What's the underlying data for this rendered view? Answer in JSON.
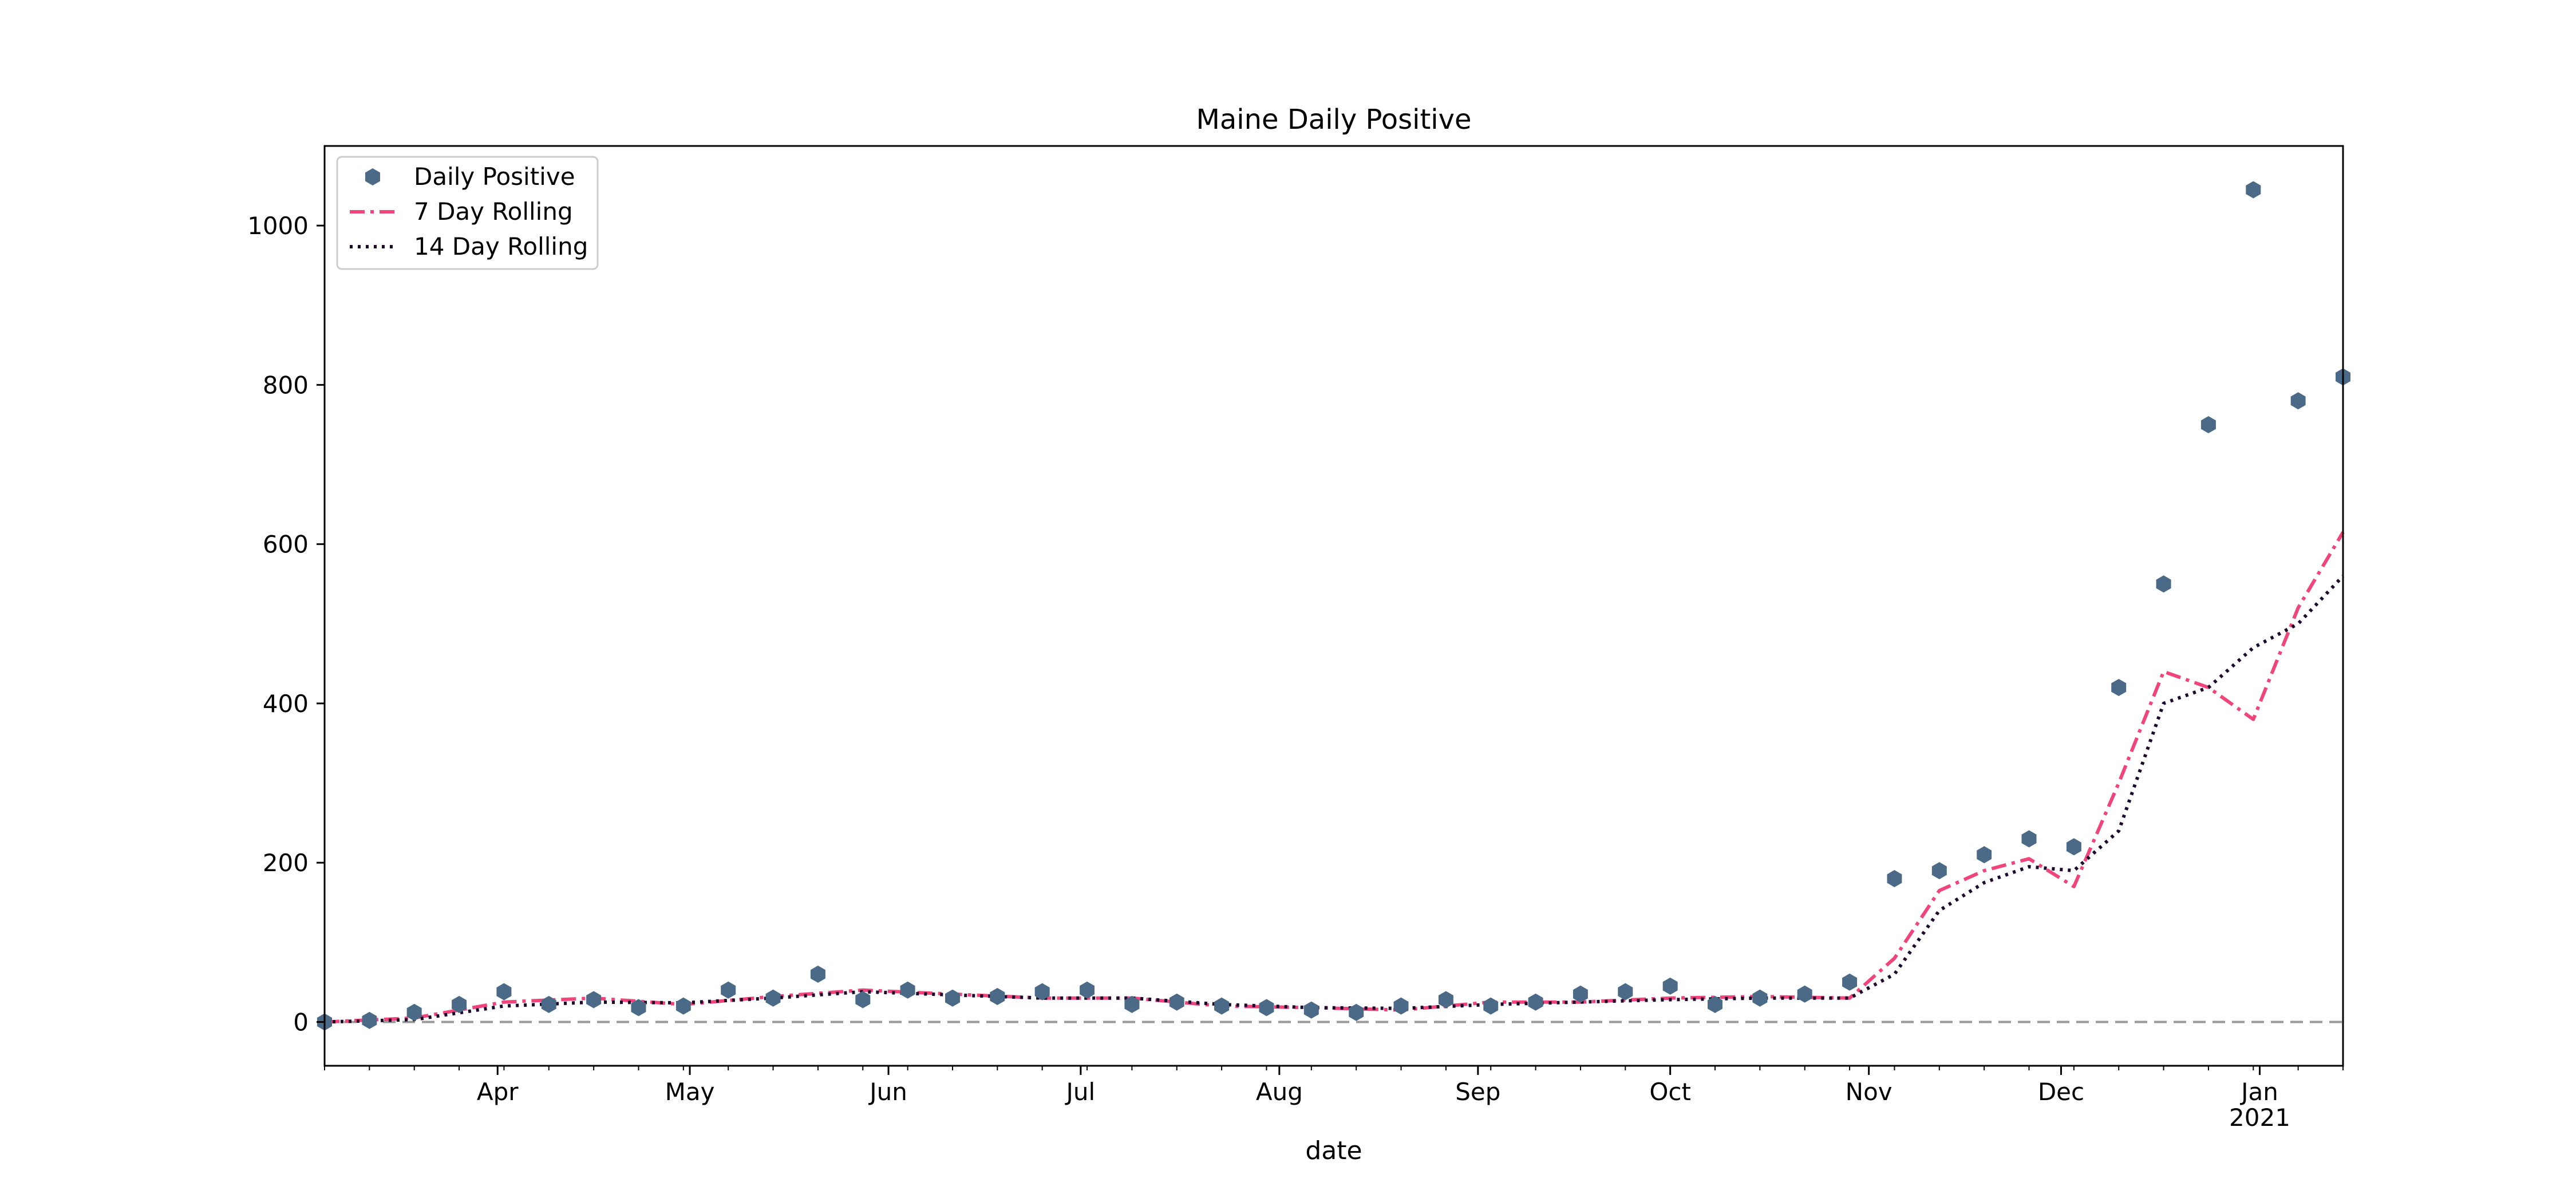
{
  "chart_data": {
    "type": "scatter",
    "title": "Maine Daily Positive",
    "xlabel": "date",
    "ylabel": "",
    "x_range": [
      "2020-03-05",
      "2021-01-14"
    ],
    "ylim": [
      -55,
      1100
    ],
    "y_ticks": [
      0,
      200,
      400,
      600,
      800,
      1000
    ],
    "x_ticks": [
      {
        "date": "2020-04-01",
        "label": "Apr",
        "sublabel": ""
      },
      {
        "date": "2020-05-01",
        "label": "May",
        "sublabel": ""
      },
      {
        "date": "2020-06-01",
        "label": "Jun",
        "sublabel": ""
      },
      {
        "date": "2020-07-01",
        "label": "Jul",
        "sublabel": ""
      },
      {
        "date": "2020-08-01",
        "label": "Aug",
        "sublabel": ""
      },
      {
        "date": "2020-09-01",
        "label": "Sep",
        "sublabel": ""
      },
      {
        "date": "2020-10-01",
        "label": "Oct",
        "sublabel": ""
      },
      {
        "date": "2020-11-01",
        "label": "Nov",
        "sublabel": ""
      },
      {
        "date": "2020-12-01",
        "label": "Dec",
        "sublabel": ""
      },
      {
        "date": "2021-01-01",
        "label": "Jan",
        "sublabel": "2021"
      }
    ],
    "legend_position": "upper-left",
    "grid": false,
    "reference_line": {
      "y": 0,
      "style": "dashed",
      "color": "#999999"
    },
    "colors": {
      "daily": "#4a6a88",
      "rolling7": "#f0457a",
      "rolling14": "#1c0a2e"
    },
    "series": [
      {
        "name": "Daily Positive",
        "style": "hexagon-markers",
        "x": [
          "2020-03-05",
          "2020-03-12",
          "2020-03-19",
          "2020-03-26",
          "2020-04-02",
          "2020-04-09",
          "2020-04-16",
          "2020-04-23",
          "2020-04-30",
          "2020-05-07",
          "2020-05-14",
          "2020-05-21",
          "2020-05-28",
          "2020-06-04",
          "2020-06-11",
          "2020-06-18",
          "2020-06-25",
          "2020-07-02",
          "2020-07-09",
          "2020-07-16",
          "2020-07-23",
          "2020-07-30",
          "2020-08-06",
          "2020-08-13",
          "2020-08-20",
          "2020-08-27",
          "2020-09-03",
          "2020-09-10",
          "2020-09-17",
          "2020-09-24",
          "2020-10-01",
          "2020-10-08",
          "2020-10-15",
          "2020-10-22",
          "2020-10-29",
          "2020-11-05",
          "2020-11-12",
          "2020-11-19",
          "2020-11-26",
          "2020-12-03",
          "2020-12-10",
          "2020-12-17",
          "2020-12-24",
          "2020-12-31",
          "2021-01-07",
          "2021-01-14"
        ],
        "y": [
          0,
          2,
          12,
          22,
          38,
          22,
          28,
          18,
          20,
          40,
          30,
          60,
          28,
          40,
          30,
          32,
          38,
          40,
          22,
          25,
          20,
          18,
          15,
          12,
          20,
          28,
          20,
          25,
          35,
          38,
          45,
          22,
          30,
          35,
          50,
          180,
          190,
          210,
          230,
          220,
          420,
          550,
          750,
          1045,
          780,
          810
        ]
      },
      {
        "name": "7 Day Rolling",
        "style": "dash-dot-line",
        "x": [
          "2020-03-05",
          "2020-03-19",
          "2020-04-02",
          "2020-04-16",
          "2020-04-30",
          "2020-05-14",
          "2020-05-28",
          "2020-06-11",
          "2020-06-25",
          "2020-07-09",
          "2020-07-23",
          "2020-08-06",
          "2020-08-20",
          "2020-09-03",
          "2020-09-17",
          "2020-10-01",
          "2020-10-15",
          "2020-10-29",
          "2020-11-05",
          "2020-11-12",
          "2020-11-19",
          "2020-11-26",
          "2020-12-03",
          "2020-12-10",
          "2020-12-17",
          "2020-12-24",
          "2020-12-31",
          "2021-01-07",
          "2021-01-14"
        ],
        "y": [
          0,
          5,
          25,
          30,
          22,
          32,
          40,
          35,
          30,
          30,
          20,
          18,
          15,
          25,
          25,
          30,
          32,
          30,
          80,
          165,
          190,
          205,
          170,
          300,
          440,
          420,
          380,
          520,
          615
        ]
      },
      {
        "name": "14 Day Rolling",
        "style": "dotted-line",
        "x": [
          "2020-03-05",
          "2020-03-19",
          "2020-04-02",
          "2020-04-16",
          "2020-04-30",
          "2020-05-14",
          "2020-05-28",
          "2020-06-11",
          "2020-06-25",
          "2020-07-09",
          "2020-07-23",
          "2020-08-06",
          "2020-08-20",
          "2020-09-03",
          "2020-09-17",
          "2020-10-01",
          "2020-10-15",
          "2020-10-29",
          "2020-11-05",
          "2020-11-12",
          "2020-11-19",
          "2020-11-26",
          "2020-12-03",
          "2020-12-10",
          "2020-12-17",
          "2020-12-24",
          "2020-12-31",
          "2021-01-07",
          "2021-01-14"
        ],
        "y": [
          0,
          3,
          20,
          25,
          24,
          30,
          38,
          34,
          30,
          30,
          22,
          18,
          17,
          22,
          25,
          28,
          30,
          30,
          60,
          140,
          175,
          195,
          190,
          240,
          400,
          420,
          470,
          500,
          560
        ]
      }
    ]
  }
}
